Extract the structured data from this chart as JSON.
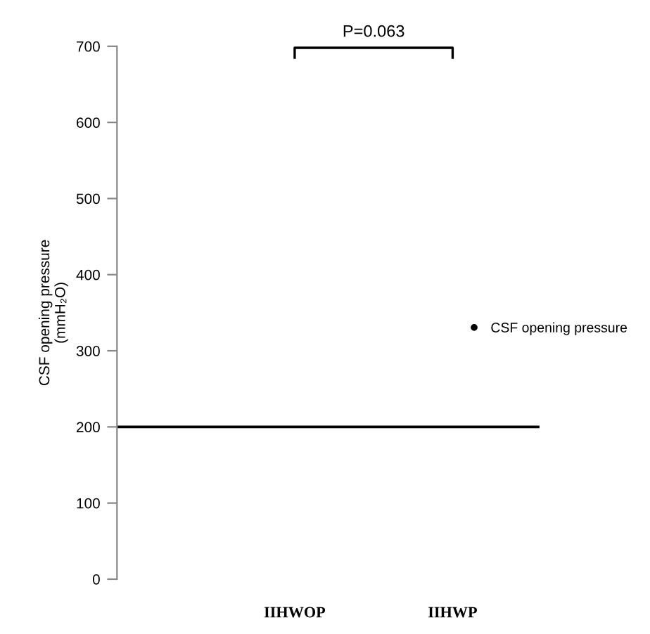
{
  "chart_data": {
    "type": "scatter",
    "ylabel": "CSF opening pressure\n(mmH₂O)",
    "categories": [
      "IIHWOP",
      "IIHWP"
    ],
    "series": [
      {
        "name": "CSF opening pressure",
        "color": "#000000",
        "values": [
          null,
          null
        ]
      }
    ],
    "ylim": [
      0,
      700
    ],
    "yticks": [
      0,
      100,
      200,
      300,
      400,
      500,
      600,
      700
    ],
    "ref_lines": [
      {
        "axis": "y",
        "value": 200,
        "color": "#000000"
      }
    ],
    "annotations": [
      "P=0.063"
    ],
    "legend": "right",
    "grid": false,
    "marker": "circle"
  }
}
